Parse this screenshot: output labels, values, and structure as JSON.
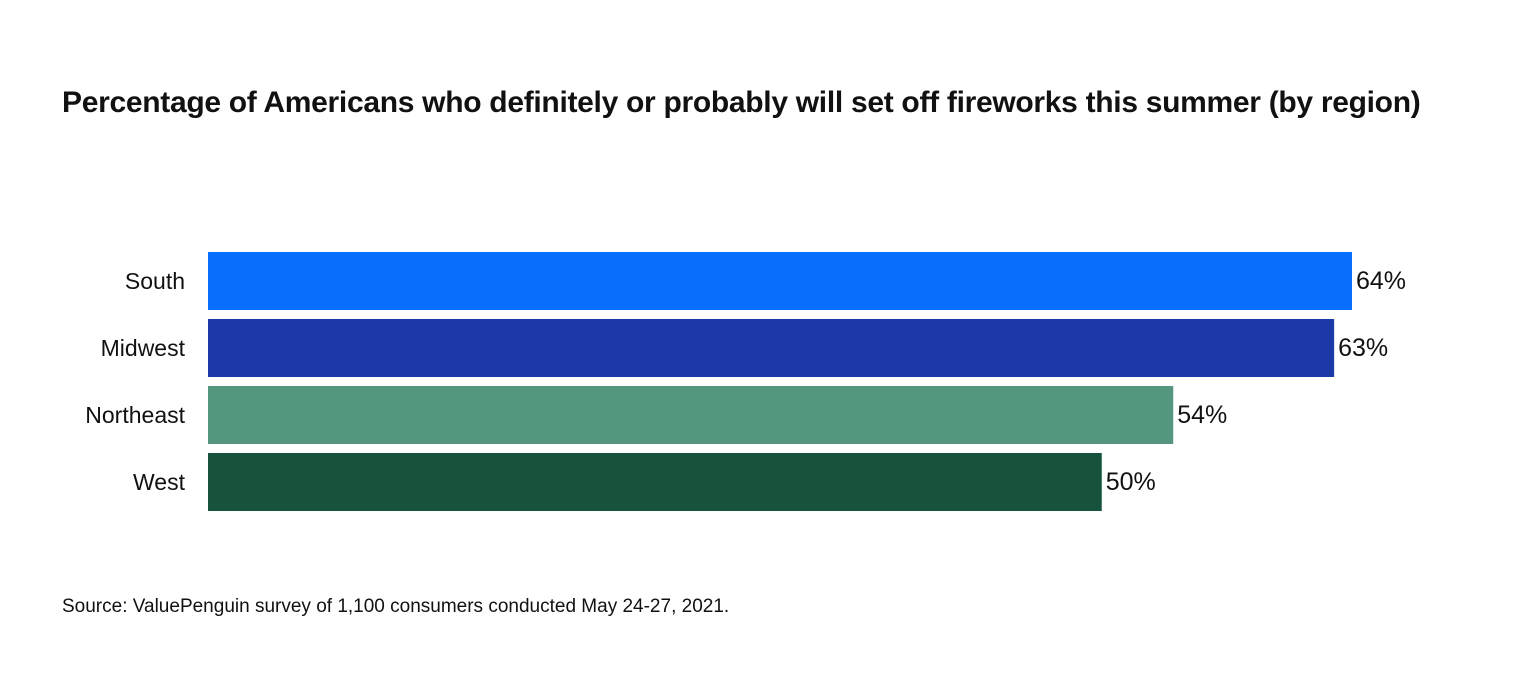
{
  "chart_data": {
    "type": "bar",
    "orientation": "horizontal",
    "title": "Percentage of Americans who definitely or probably will set off fireworks this summer (by region)",
    "categories": [
      "South",
      "Midwest",
      "Northeast",
      "West"
    ],
    "values": [
      64,
      63,
      54,
      50
    ],
    "value_labels": [
      "64%",
      "63%",
      "54%",
      "50%"
    ],
    "unit": "%",
    "colors": [
      "#0a6ffc",
      "#1b3aa8",
      "#55967e",
      "#17533c"
    ],
    "xlim": [
      0,
      64
    ],
    "grid": false,
    "legend": "none"
  },
  "footer": {
    "source": "Source: ValuePenguin survey of 1,100 consumers conducted May 24-27, 2021."
  }
}
